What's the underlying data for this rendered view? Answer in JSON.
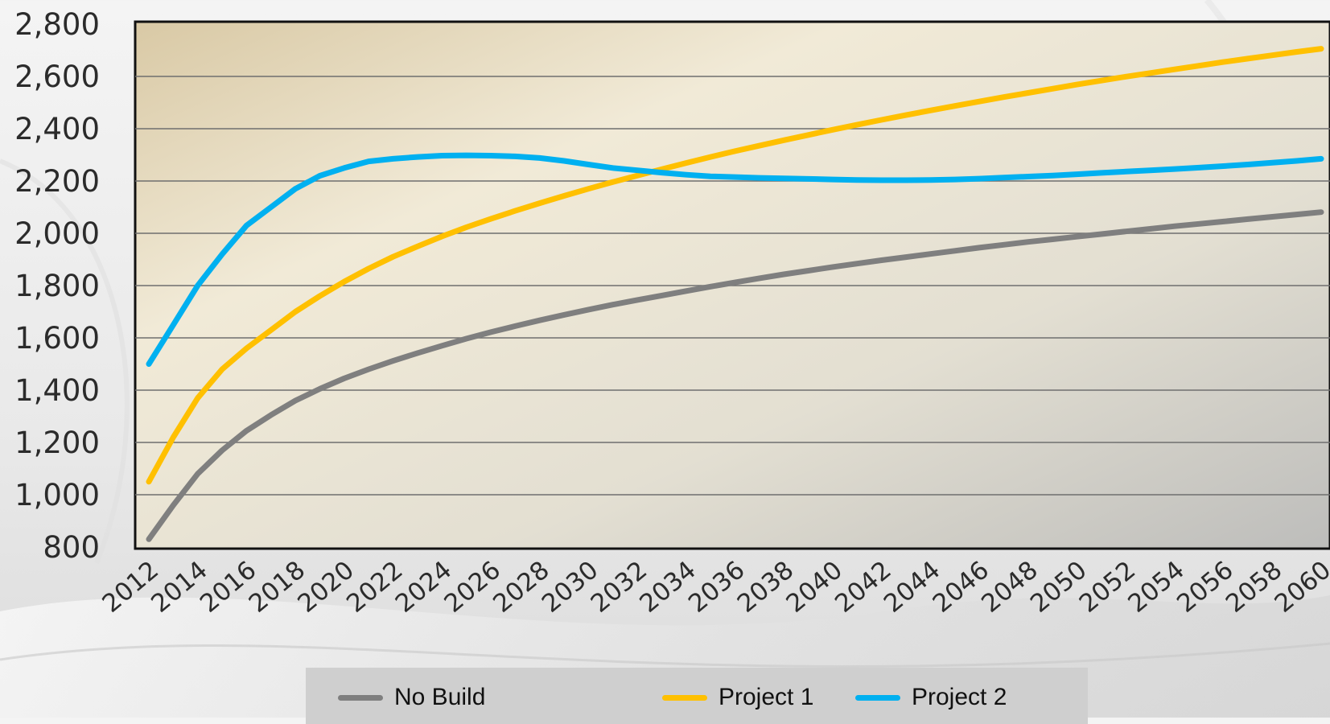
{
  "chart_data": {
    "type": "line",
    "title": "",
    "xlabel": "",
    "ylabel": "",
    "x": [
      2012,
      2013,
      2014,
      2015,
      2016,
      2017,
      2018,
      2019,
      2020,
      2021,
      2022,
      2023,
      2024,
      2025,
      2026,
      2027,
      2028,
      2029,
      2030,
      2031,
      2032,
      2033,
      2034,
      2035,
      2036,
      2037,
      2038,
      2039,
      2040,
      2041,
      2042,
      2043,
      2044,
      2045,
      2046,
      2047,
      2048,
      2049,
      2050,
      2051,
      2052,
      2053,
      2054,
      2055,
      2056,
      2057,
      2058,
      2059,
      2060
    ],
    "x_tick_labels": [
      "2012",
      "2014",
      "2016",
      "2018",
      "2020",
      "2022",
      "2024",
      "2026",
      "2028",
      "2030",
      "2032",
      "2034",
      "2036",
      "2038",
      "2040",
      "2042",
      "2044",
      "2046",
      "2048",
      "2050",
      "2052",
      "2054",
      "2056",
      "2058",
      "2060"
    ],
    "y_tick_labels": [
      "800",
      "1,000",
      "1,200",
      "1,400",
      "1,600",
      "1,800",
      "2,000",
      "2,200",
      "2,400",
      "2,600",
      "2,800"
    ],
    "ylim": [
      800,
      2800
    ],
    "grid": "horizontal",
    "legend_position": "bottom",
    "series": [
      {
        "name": "No Build",
        "color": "#7f7f7f",
        "values": [
          830,
          960,
          1080,
          1170,
          1245,
          1305,
          1360,
          1405,
          1445,
          1480,
          1512,
          1542,
          1570,
          1597,
          1622,
          1645,
          1667,
          1688,
          1708,
          1727,
          1745,
          1762,
          1779,
          1796,
          1812,
          1828,
          1843,
          1857,
          1871,
          1884,
          1897,
          1909,
          1921,
          1933,
          1945,
          1956,
          1967,
          1977,
          1987,
          1997,
          2007,
          2017,
          2027,
          2036,
          2045,
          2054,
          2063,
          2072,
          2081
        ]
      },
      {
        "name": "Project 1",
        "color": "#ffc000",
        "values": [
          1050,
          1220,
          1370,
          1480,
          1560,
          1630,
          1700,
          1760,
          1815,
          1865,
          1910,
          1950,
          1988,
          2023,
          2055,
          2086,
          2115,
          2143,
          2170,
          2196,
          2221,
          2245,
          2269,
          2292,
          2314,
          2335,
          2356,
          2376,
          2396,
          2415,
          2434,
          2452,
          2470,
          2487,
          2504,
          2521,
          2537,
          2553,
          2569,
          2584,
          2599,
          2613,
          2627,
          2641,
          2655,
          2668,
          2681,
          2694,
          2706
        ]
      },
      {
        "name": "Project 2",
        "color": "#00b0f0",
        "values": [
          1500,
          1650,
          1800,
          1920,
          2030,
          2100,
          2170,
          2220,
          2250,
          2275,
          2285,
          2292,
          2297,
          2298,
          2297,
          2294,
          2288,
          2277,
          2263,
          2250,
          2241,
          2232,
          2224,
          2218,
          2215,
          2212,
          2210,
          2208,
          2206,
          2204,
          2203,
          2203,
          2204,
          2206,
          2209,
          2213,
          2217,
          2221,
          2226,
          2231,
          2236,
          2241,
          2246,
          2251,
          2257,
          2263,
          2270,
          2277,
          2285
        ]
      }
    ]
  }
}
